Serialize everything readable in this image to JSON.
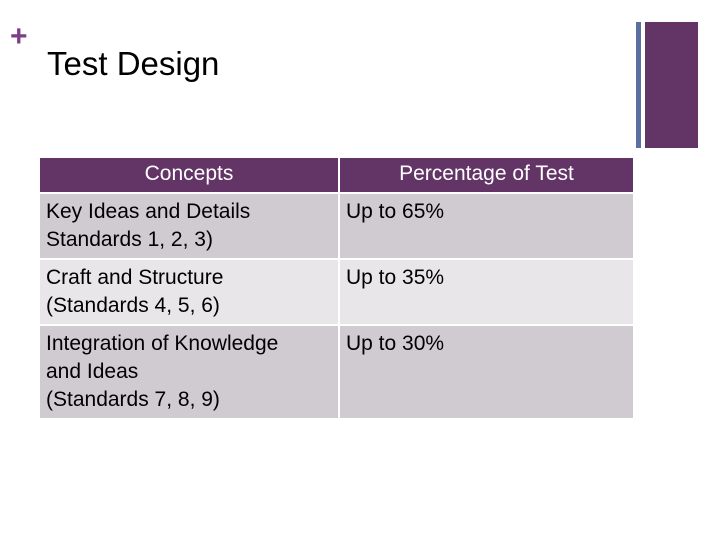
{
  "slide": {
    "plus": "+",
    "title": "Test Design"
  },
  "table": {
    "headers": [
      "Concepts",
      "Percentage of Test"
    ],
    "rows": [
      {
        "concept_lines": [
          "Key Ideas and Details",
          "Standards 1, 2, 3)"
        ],
        "percent": "Up to 65%"
      },
      {
        "concept_lines": [
          "Craft and Structure",
          "(Standards 4, 5, 6)"
        ],
        "percent": "Up to 35%"
      },
      {
        "concept_lines": [
          "Integration of Knowledge",
          "and Ideas",
          "(Standards 7, 8, 9)"
        ],
        "percent": "Up to 30%"
      }
    ]
  },
  "colors": {
    "accent_purple": "#633466",
    "accent_blue": "#5c6fa0",
    "row_dark": "#d0cad1",
    "row_light": "#e8e6e9"
  }
}
